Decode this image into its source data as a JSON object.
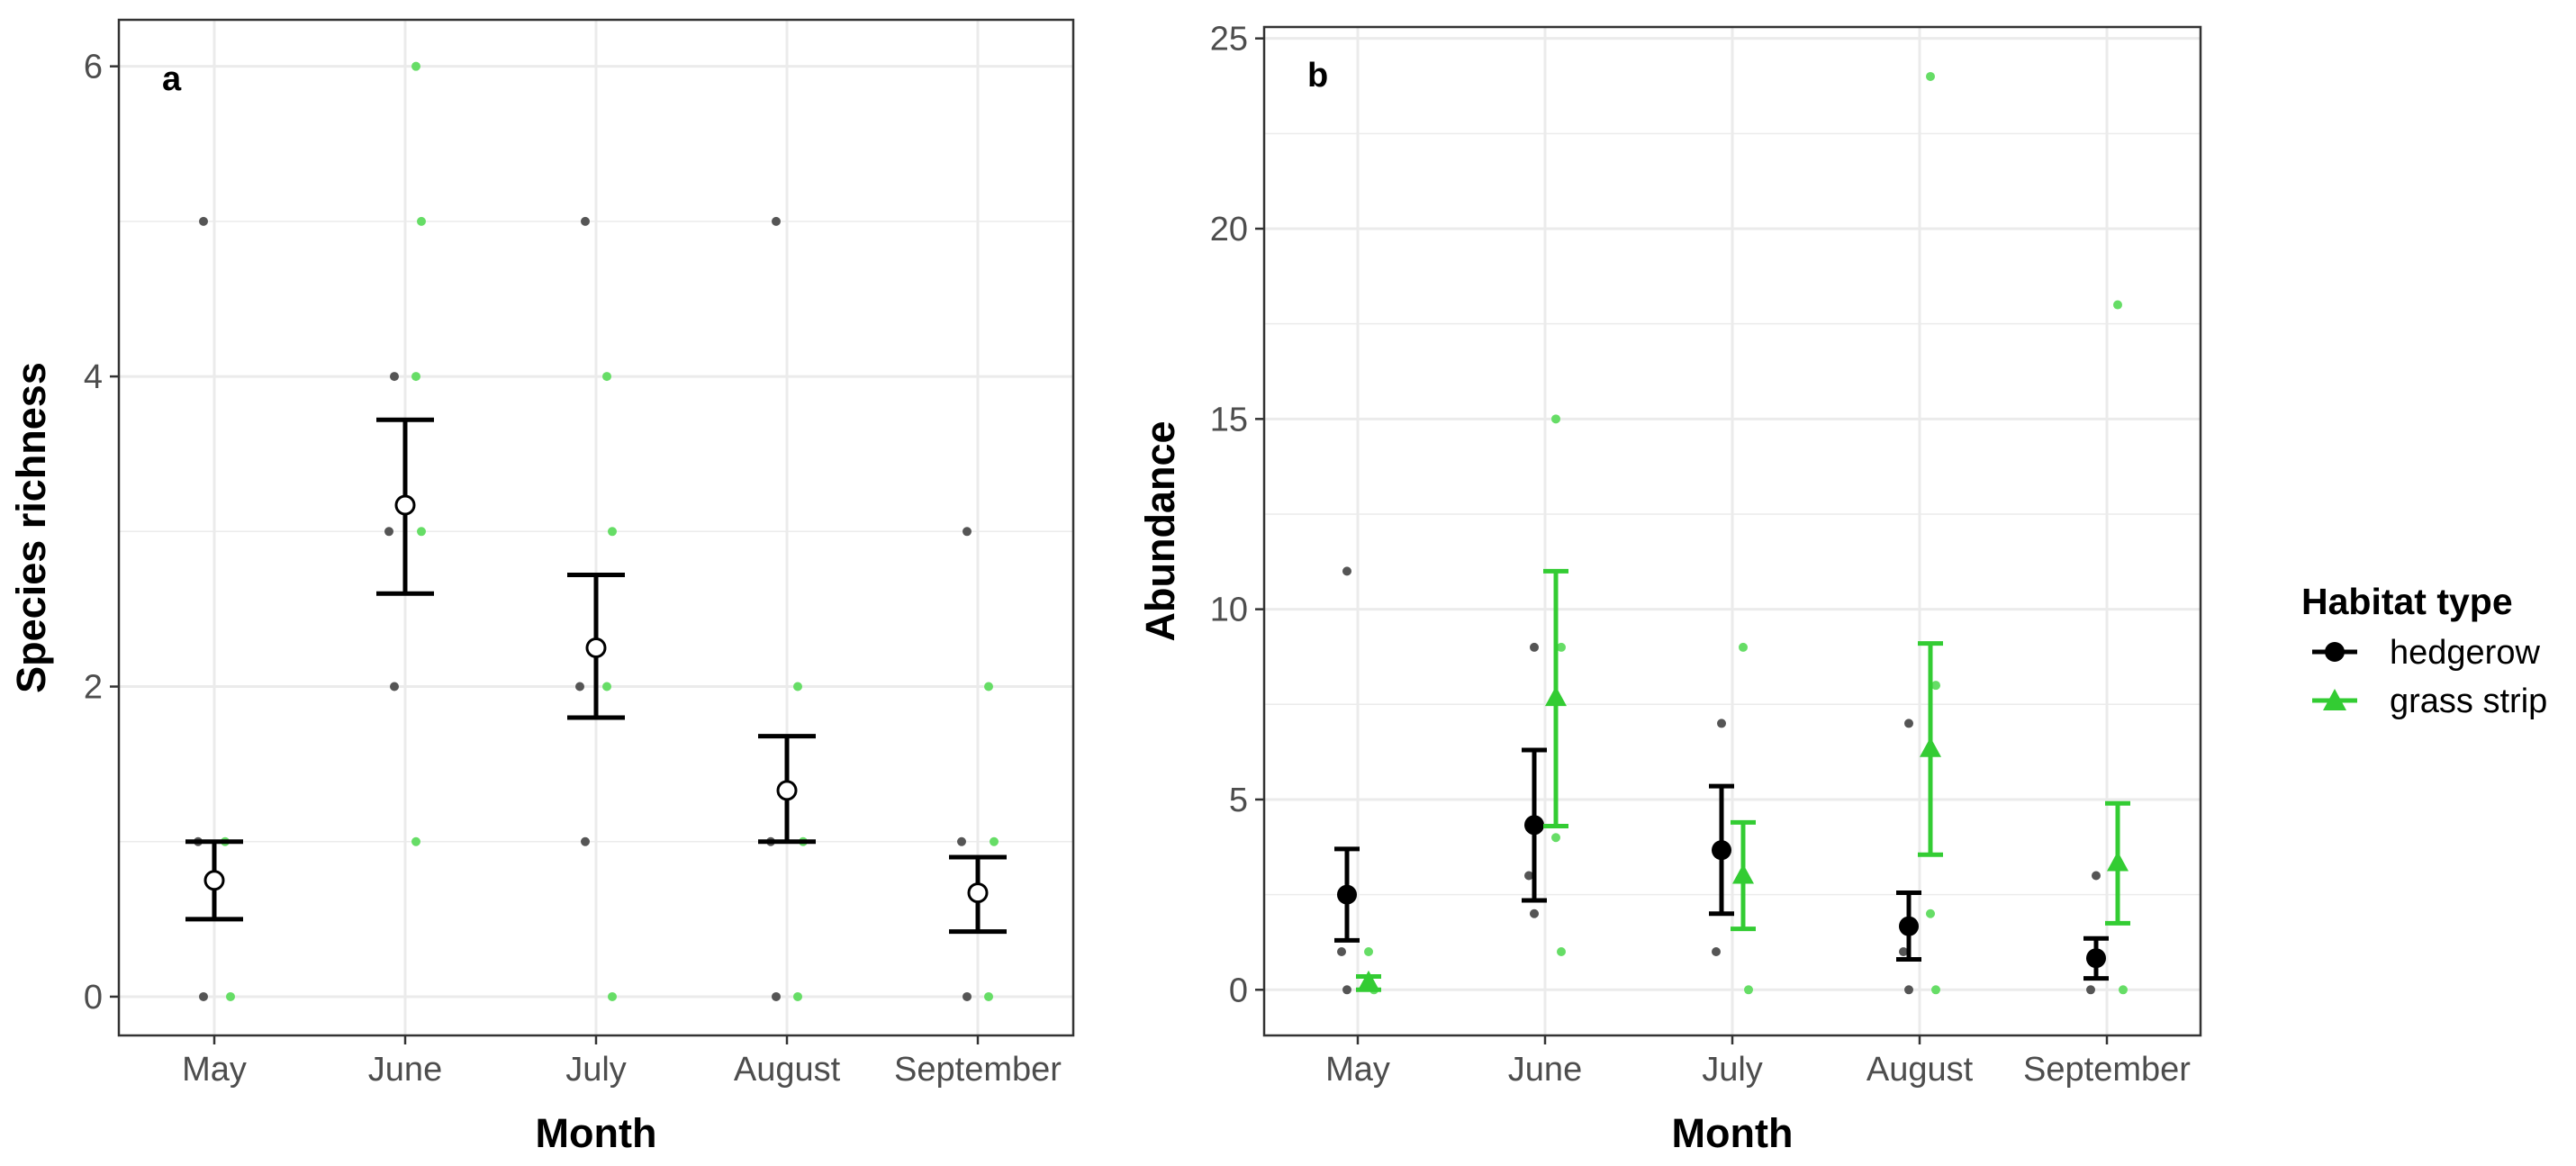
{
  "legend": {
    "title": "Habitat type",
    "items": [
      {
        "label": "hedgerow",
        "color": "#000000",
        "shape": "circle"
      },
      {
        "label": "grass strip",
        "color": "#33cc33",
        "shape": "triangle"
      }
    ]
  },
  "colors": {
    "hedgerow": "#000000",
    "grass_strip": "#33cc33",
    "raw_hedgerow": "#555555",
    "raw_grass": "#66dd66",
    "grid": "#ebebeb",
    "panel_border": "#333333"
  },
  "chart_data": [
    {
      "type": "scatter",
      "panel": "a",
      "title": "",
      "xlabel": "Month",
      "ylabel": "Species richness",
      "categories": [
        "May",
        "June",
        "July",
        "August",
        "September"
      ],
      "ylim": [
        -0.25,
        6.3
      ],
      "yticks": [
        0,
        2,
        4,
        6
      ],
      "grid": true,
      "summary": {
        "name": "overall",
        "marker": "open-circle",
        "color": "#000000",
        "mean": [
          0.75,
          3.17,
          2.25,
          1.33,
          0.67
        ],
        "lower": [
          0.5,
          2.6,
          1.8,
          1.0,
          0.42
        ],
        "upper": [
          1.0,
          3.72,
          2.72,
          1.68,
          0.9
        ]
      },
      "raw": [
        {
          "series": "hedgerow",
          "month": "May",
          "values": [
            5,
            1,
            0
          ]
        },
        {
          "series": "grass strip",
          "month": "May",
          "values": [
            1,
            0
          ]
        },
        {
          "series": "hedgerow",
          "month": "June",
          "values": [
            4,
            3,
            2
          ]
        },
        {
          "series": "grass strip",
          "month": "June",
          "values": [
            6,
            5,
            4,
            3,
            1
          ]
        },
        {
          "series": "hedgerow",
          "month": "July",
          "values": [
            5,
            2,
            1
          ]
        },
        {
          "series": "grass strip",
          "month": "July",
          "values": [
            4,
            3,
            2,
            0
          ]
        },
        {
          "series": "hedgerow",
          "month": "August",
          "values": [
            5,
            1,
            0
          ]
        },
        {
          "series": "grass strip",
          "month": "August",
          "values": [
            2,
            1,
            0
          ]
        },
        {
          "series": "hedgerow",
          "month": "September",
          "values": [
            3,
            1,
            0
          ]
        },
        {
          "series": "grass strip",
          "month": "September",
          "values": [
            2,
            1,
            0
          ]
        }
      ]
    },
    {
      "type": "scatter",
      "panel": "b",
      "title": "",
      "xlabel": "Month",
      "ylabel": "Abundance",
      "categories": [
        "May",
        "June",
        "July",
        "August",
        "September"
      ],
      "ylim": [
        -1.2,
        25.3
      ],
      "yticks": [
        0,
        5,
        10,
        15,
        20,
        25
      ],
      "grid": true,
      "series": [
        {
          "name": "hedgerow",
          "marker": "circle",
          "color": "#000000",
          "mean": [
            2.5,
            4.33,
            3.67,
            1.67,
            0.83
          ],
          "lower": [
            1.3,
            2.35,
            2.0,
            0.8,
            0.3
          ],
          "upper": [
            3.7,
            6.3,
            5.35,
            2.55,
            1.35
          ]
        },
        {
          "name": "grass strip",
          "marker": "triangle",
          "color": "#33cc33",
          "mean": [
            0.2,
            7.67,
            3.0,
            6.33,
            3.33
          ],
          "lower": [
            0.0,
            4.3,
            1.6,
            3.55,
            1.75
          ],
          "upper": [
            0.35,
            11.0,
            4.4,
            9.1,
            4.9
          ]
        }
      ],
      "raw": [
        {
          "series": "hedgerow",
          "month": "May",
          "values": [
            11,
            1,
            0
          ]
        },
        {
          "series": "grass strip",
          "month": "May",
          "values": [
            1,
            0
          ]
        },
        {
          "series": "hedgerow",
          "month": "June",
          "values": [
            9,
            3,
            2
          ]
        },
        {
          "series": "grass strip",
          "month": "June",
          "values": [
            15,
            9,
            4,
            1
          ]
        },
        {
          "series": "hedgerow",
          "month": "July",
          "values": [
            7,
            1
          ]
        },
        {
          "series": "grass strip",
          "month": "July",
          "values": [
            9,
            0
          ]
        },
        {
          "series": "hedgerow",
          "month": "August",
          "values": [
            7,
            1,
            0
          ]
        },
        {
          "series": "grass strip",
          "month": "August",
          "values": [
            24,
            8,
            2,
            0
          ]
        },
        {
          "series": "hedgerow",
          "month": "September",
          "values": [
            3,
            0
          ]
        },
        {
          "series": "grass strip",
          "month": "September",
          "values": [
            18,
            0
          ]
        }
      ]
    }
  ]
}
